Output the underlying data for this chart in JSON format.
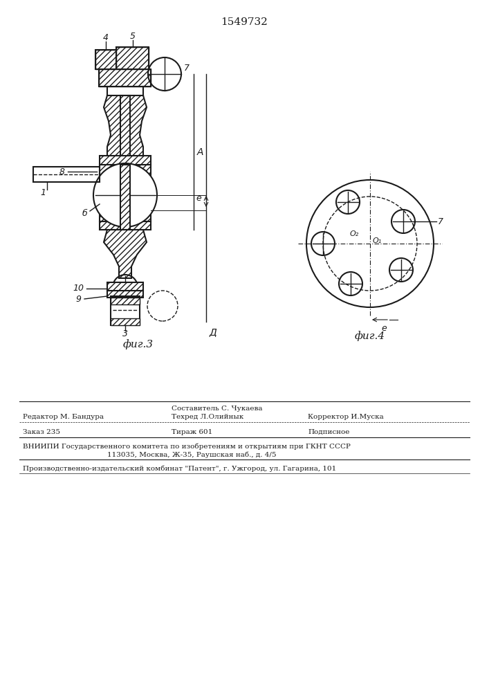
{
  "patent_number": "1549732",
  "bg_color": "#ffffff",
  "line_color": "#1a1a1a",
  "fig3_label": "фиг.3",
  "fig4_label": "фиг.4",
  "label_A": "A",
  "label_D": "Д",
  "label_e": "e",
  "label_e2": "e",
  "label_O1": "O₁",
  "label_O2": "O₂",
  "footer_line1_col2": "Составитель С. Чукаева",
  "footer_line1_col1": "Редактор М. Бандура",
  "footer_line2_col2": "Техред Л.Олийнык",
  "footer_line2_col3": "Корректор И.Муска",
  "footer_zakaz": "Заказ 235",
  "footer_tirazh": "Тираж 601",
  "footer_podpisnoe": "Подписное",
  "footer_vniipii": "ВНИИПИ Государственного комитета по изобретениям и открытиям при ГКНТ СССР",
  "footer_address": "113035, Москва, Ж-35, Раушская наб., д. 4/5",
  "footer_proizv": "Производственно-издательский комбинат \"Патент\", г. Ужгород, ул. Гагарина, 101"
}
